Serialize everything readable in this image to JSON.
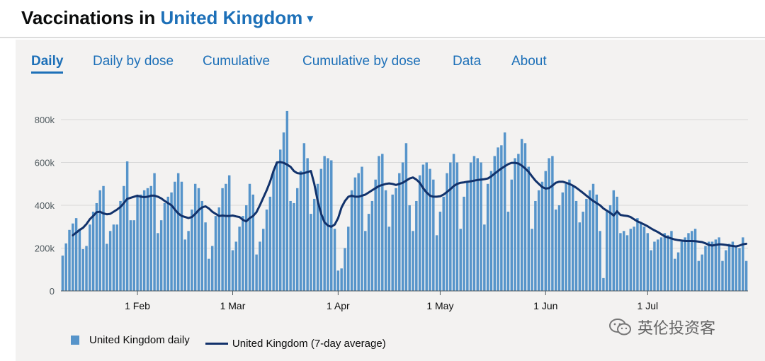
{
  "header": {
    "title_prefix": "Vaccinations in",
    "country": "United Kingdom",
    "caret": "▾"
  },
  "tabs": [
    {
      "label": "Daily",
      "active": true
    },
    {
      "label": "Daily by dose",
      "active": false
    },
    {
      "label": "Cumulative",
      "active": false
    },
    {
      "label": "Cumulative by dose",
      "active": false
    },
    {
      "label": "Data",
      "active": false
    },
    {
      "label": "About",
      "active": false
    }
  ],
  "colors": {
    "bar": "#5694ca",
    "line": "#12326b",
    "accent": "#1d70b8",
    "panel": "#f3f2f1"
  },
  "watermark": {
    "text": "英伦投资客"
  },
  "chart_data": {
    "type": "bar",
    "title": "Vaccinations in United Kingdom",
    "xlabel": "",
    "ylabel": "",
    "ylim": [
      0,
      850000
    ],
    "yticks": [
      0,
      200000,
      400000,
      600000,
      800000
    ],
    "ytick_labels": [
      "0",
      "200k",
      "400k",
      "600k",
      "800k"
    ],
    "x_start": "2021-01-10",
    "xticks": [
      {
        "label": "1 Feb",
        "index": 22
      },
      {
        "label": "1 Mar",
        "index": 50
      },
      {
        "label": "1 Apr",
        "index": 81
      },
      {
        "label": "1 May",
        "index": 111
      },
      {
        "label": "1 Jun",
        "index": 142
      },
      {
        "label": "1 Jul",
        "index": 172
      }
    ],
    "grid": true,
    "legend": "bottom-left",
    "series": [
      {
        "name": "United Kingdom daily",
        "type": "bar",
        "values": [
          165000,
          222000,
          285000,
          315000,
          340000,
          290000,
          195000,
          210000,
          310000,
          370000,
          410000,
          470000,
          490000,
          220000,
          280000,
          310000,
          310000,
          420000,
          490000,
          605000,
          330000,
          330000,
          440000,
          450000,
          470000,
          480000,
          490000,
          550000,
          270000,
          330000,
          410000,
          440000,
          460000,
          510000,
          550000,
          510000,
          240000,
          280000,
          380000,
          500000,
          480000,
          420000,
          320000,
          150000,
          210000,
          350000,
          390000,
          480000,
          500000,
          540000,
          190000,
          230000,
          300000,
          350000,
          400000,
          500000,
          450000,
          170000,
          230000,
          290000,
          380000,
          440000,
          560000,
          600000,
          660000,
          740000,
          840000,
          420000,
          410000,
          480000,
          560000,
          690000,
          620000,
          360000,
          430000,
          500000,
          570000,
          630000,
          620000,
          610000,
          290000,
          95000,
          105000,
          200000,
          300000,
          470000,
          530000,
          550000,
          580000,
          280000,
          360000,
          420000,
          520000,
          630000,
          640000,
          470000,
          300000,
          450000,
          480000,
          550000,
          600000,
          690000,
          400000,
          280000,
          420000,
          540000,
          590000,
          600000,
          570000,
          520000,
          260000,
          370000,
          440000,
          550000,
          600000,
          640000,
          600000,
          290000,
          440000,
          510000,
          600000,
          630000,
          620000,
          600000,
          310000,
          500000,
          560000,
          630000,
          670000,
          680000,
          740000,
          370000,
          520000,
          620000,
          640000,
          710000,
          690000,
          580000,
          290000,
          420000,
          470000,
          510000,
          560000,
          620000,
          630000,
          380000,
          400000,
          460000,
          500000,
          520000,
          490000,
          420000,
          320000,
          370000,
          430000,
          470000,
          500000,
          450000,
          280000,
          60000,
          370000,
          400000,
          470000,
          440000,
          270000,
          280000,
          260000,
          290000,
          300000,
          340000,
          320000,
          300000,
          270000,
          190000,
          230000,
          240000,
          250000,
          270000,
          260000,
          280000,
          150000,
          180000,
          230000,
          250000,
          270000,
          280000,
          290000,
          140000,
          170000,
          210000,
          230000,
          230000,
          240000,
          250000,
          140000,
          190000,
          220000,
          230000,
          210000,
          200000,
          250000,
          140000
        ]
      },
      {
        "name": "United Kingdom (7-day average)",
        "type": "line",
        "start_index": 3,
        "values": [
          260000,
          272000,
          285000,
          295000,
          312000,
          335000,
          350000,
          368000,
          370000,
          362000,
          358000,
          360000,
          370000,
          380000,
          392000,
          410000,
          430000,
          435000,
          440000,
          445000,
          440000,
          438000,
          440000,
          445000,
          445000,
          440000,
          432000,
          420000,
          410000,
          400000,
          380000,
          362000,
          350000,
          345000,
          340000,
          345000,
          360000,
          378000,
          390000,
          395000,
          385000,
          370000,
          360000,
          350000,
          352000,
          350000,
          350000,
          352000,
          348000,
          345000,
          332000,
          325000,
          340000,
          350000,
          368000,
          400000,
          435000,
          470000,
          510000,
          560000,
          600000,
          602000,
          598000,
          590000,
          580000,
          560000,
          550000,
          548000,
          550000,
          555000,
          560000,
          500000,
          420000,
          360000,
          320000,
          305000,
          300000,
          310000,
          340000,
          390000,
          420000,
          440000,
          445000,
          440000,
          440000,
          445000,
          450000,
          460000,
          470000,
          480000,
          490000,
          495000,
          500000,
          502000,
          500000,
          495000,
          500000,
          505000,
          515000,
          525000,
          530000,
          520000,
          505000,
          480000,
          460000,
          445000,
          440000,
          440000,
          442000,
          450000,
          462000,
          475000,
          490000,
          500000,
          505000,
          507000,
          510000,
          512000,
          515000,
          518000,
          520000,
          522000,
          525000,
          535000,
          548000,
          560000,
          572000,
          582000,
          592000,
          598000,
          598000,
          595000,
          585000,
          572000,
          556000,
          535000,
          515000,
          500000,
          485000,
          478000,
          480000,
          492000,
          505000,
          510000,
          510000,
          505000,
          500000,
          492000,
          482000,
          470000,
          458000,
          445000,
          432000,
          420000,
          410000,
          400000,
          385000,
          375000,
          365000,
          352000,
          372000,
          355000,
          352000,
          350000,
          345000,
          335000,
          325000,
          318000,
          310000,
          302000,
          292000,
          283000,
          275000,
          265000,
          255000,
          250000,
          245000,
          240000,
          237000,
          235000,
          233000,
          233000,
          233000,
          232000,
          230000,
          228000,
          222000,
          215000,
          212000,
          215000,
          218000,
          217000,
          215000,
          212000,
          210000,
          208000,
          212000,
          218000,
          220000
        ]
      }
    ]
  }
}
